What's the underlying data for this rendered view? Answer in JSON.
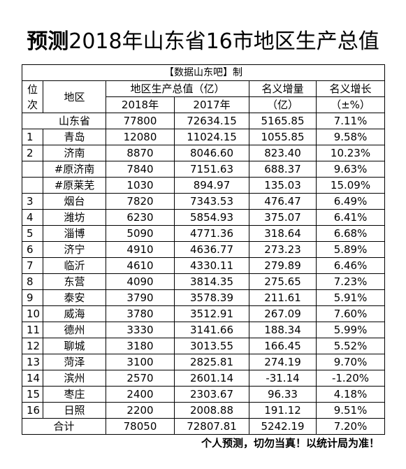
{
  "title": {
    "bold": "预测",
    "rest": "2018年山东省16市地区生产总值"
  },
  "source_note": "【数据山东吧】制",
  "headers": {
    "rank": "位次",
    "region": "地区",
    "gdp_group": "地区生产总值（亿）",
    "y2018": "2018年",
    "y2017": "2017年",
    "increase": "名义增量",
    "increase_unit": "（亿）",
    "growth": "名义增长",
    "growth_unit": "（±%）"
  },
  "province": {
    "region": "山东省",
    "y2018": "77800",
    "y2017": "72634.15",
    "increase": "5165.85",
    "growth": "7.11%"
  },
  "rows": [
    {
      "rank": "1",
      "region": "青岛",
      "y2018": "12080",
      "y2017": "11024.15",
      "increase": "1055.85",
      "growth": "9.58%"
    },
    {
      "rank": "2",
      "region": "济南",
      "y2018": "8870",
      "y2017": "8046.60",
      "increase": "823.40",
      "growth": "10.23%"
    },
    {
      "rank": "",
      "region": "#原济南",
      "y2018": "7840",
      "y2017": "7151.63",
      "increase": "688.37",
      "growth": "9.63%"
    },
    {
      "rank": "",
      "region": "#原莱芜",
      "y2018": "1030",
      "y2017": "894.97",
      "increase": "135.03",
      "growth": "15.09%"
    },
    {
      "rank": "3",
      "region": "烟台",
      "y2018": "7820",
      "y2017": "7343.53",
      "increase": "476.47",
      "growth": "6.49%"
    },
    {
      "rank": "4",
      "region": "潍坊",
      "y2018": "6230",
      "y2017": "5854.93",
      "increase": "375.07",
      "growth": "6.41%"
    },
    {
      "rank": "5",
      "region": "淄博",
      "y2018": "5090",
      "y2017": "4771.36",
      "increase": "318.64",
      "growth": "6.68%"
    },
    {
      "rank": "6",
      "region": "济宁",
      "y2018": "4910",
      "y2017": "4636.77",
      "increase": "273.23",
      "growth": "5.89%"
    },
    {
      "rank": "7",
      "region": "临沂",
      "y2018": "4610",
      "y2017": "4330.11",
      "increase": "279.89",
      "growth": "6.46%"
    },
    {
      "rank": "8",
      "region": "东营",
      "y2018": "4090",
      "y2017": "3814.35",
      "increase": "275.65",
      "growth": "7.23%"
    },
    {
      "rank": "9",
      "region": "泰安",
      "y2018": "3790",
      "y2017": "3578.39",
      "increase": "211.61",
      "growth": "5.91%"
    },
    {
      "rank": "10",
      "region": "威海",
      "y2018": "3780",
      "y2017": "3512.91",
      "increase": "267.09",
      "growth": "7.60%"
    },
    {
      "rank": "11",
      "region": "德州",
      "y2018": "3330",
      "y2017": "3141.66",
      "increase": "188.34",
      "growth": "5.99%"
    },
    {
      "rank": "12",
      "region": "聊城",
      "y2018": "3180",
      "y2017": "3013.55",
      "increase": "166.45",
      "growth": "5.52%"
    },
    {
      "rank": "13",
      "region": "菏泽",
      "y2018": "3100",
      "y2017": "2825.81",
      "increase": "274.19",
      "growth": "9.70%"
    },
    {
      "rank": "14",
      "region": "滨州",
      "y2018": "2570",
      "y2017": "2601.14",
      "increase": "-31.14",
      "growth": "-1.20%"
    },
    {
      "rank": "15",
      "region": "枣庄",
      "y2018": "2400",
      "y2017": "2303.67",
      "increase": "96.33",
      "growth": "4.18%"
    },
    {
      "rank": "16",
      "region": "日照",
      "y2018": "2200",
      "y2017": "2008.88",
      "increase": "191.12",
      "growth": "9.51%"
    }
  ],
  "total": {
    "label": "合计",
    "y2018": "78050",
    "y2017": "72807.81",
    "increase": "5242.19",
    "growth": "7.20%"
  },
  "footer_note": "个人预测，切勿当真！以统计局为准！"
}
